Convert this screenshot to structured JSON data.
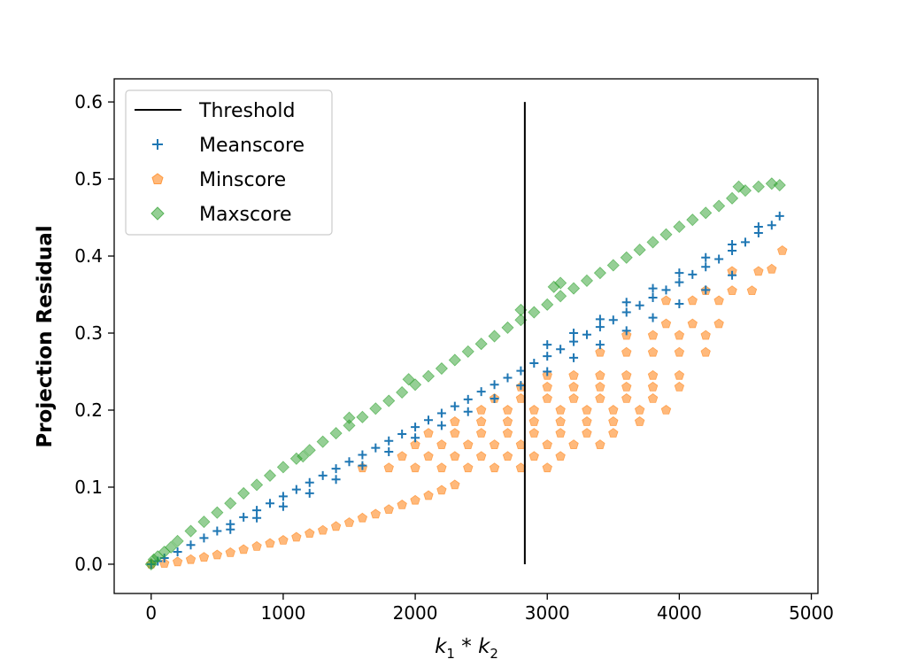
{
  "chart_data": {
    "type": "scatter",
    "xlabel": {
      "base1": "k",
      "sub1": "1",
      "op": " * ",
      "base2": "k",
      "sub2": "2"
    },
    "ylabel": "Projection Residual",
    "xlim": [
      -280,
      5050
    ],
    "ylim": [
      -0.038,
      0.63
    ],
    "x_ticks": [
      0,
      1000,
      2000,
      3000,
      4000,
      5000
    ],
    "x_tick_labels": [
      "0",
      "1000",
      "2000",
      "3000",
      "4000",
      "5000"
    ],
    "y_ticks": [
      0.0,
      0.1,
      0.2,
      0.3,
      0.4,
      0.5,
      0.6
    ],
    "y_tick_labels": [
      "0.0",
      "0.1",
      "0.2",
      "0.3",
      "0.4",
      "0.5",
      "0.6"
    ],
    "grid": false,
    "legend": {
      "position": "top-left",
      "entries": [
        {
          "label": "Threshold",
          "marker": "line",
          "color": "#000000"
        },
        {
          "label": "Meanscore",
          "marker": "plus",
          "color": "#1f77b4"
        },
        {
          "label": "Minscore",
          "marker": "pentagon",
          "color": "#ff7f0e"
        },
        {
          "label": "Maxscore",
          "marker": "diamond",
          "color": "#2ca02c"
        }
      ]
    },
    "threshold": {
      "x": 2830,
      "y_range": [
        0.0,
        0.6
      ]
    },
    "series": [
      {
        "name": "Meanscore",
        "marker": "plus",
        "color": "#1f77b4",
        "points": [
          [
            0,
            0
          ],
          [
            50,
            0.004
          ],
          [
            100,
            0.008
          ],
          [
            200,
            0.016
          ],
          [
            300,
            0.025
          ],
          [
            400,
            0.034
          ],
          [
            500,
            0.043
          ],
          [
            600,
            0.052
          ],
          [
            700,
            0.061
          ],
          [
            800,
            0.07
          ],
          [
            900,
            0.079
          ],
          [
            1000,
            0.088
          ],
          [
            1100,
            0.097
          ],
          [
            1200,
            0.106
          ],
          [
            1300,
            0.115
          ],
          [
            1400,
            0.124
          ],
          [
            1500,
            0.133
          ],
          [
            1600,
            0.142
          ],
          [
            1700,
            0.151
          ],
          [
            1800,
            0.16
          ],
          [
            1900,
            0.169
          ],
          [
            2000,
            0.178
          ],
          [
            2100,
            0.187
          ],
          [
            2200,
            0.196
          ],
          [
            2300,
            0.205
          ],
          [
            2400,
            0.214
          ],
          [
            2500,
            0.224
          ],
          [
            2600,
            0.233
          ],
          [
            2700,
            0.242
          ],
          [
            2800,
            0.251
          ],
          [
            2900,
            0.261
          ],
          [
            3000,
            0.27
          ],
          [
            3100,
            0.279
          ],
          [
            3200,
            0.289
          ],
          [
            3300,
            0.298
          ],
          [
            3400,
            0.308
          ],
          [
            3500,
            0.317
          ],
          [
            3600,
            0.327
          ],
          [
            3700,
            0.336
          ],
          [
            3800,
            0.346
          ],
          [
            3900,
            0.356
          ],
          [
            4000,
            0.366
          ],
          [
            4100,
            0.376
          ],
          [
            4200,
            0.386
          ],
          [
            4300,
            0.396
          ],
          [
            4400,
            0.407
          ],
          [
            4500,
            0.418
          ],
          [
            4600,
            0.43
          ],
          [
            4700,
            0.44
          ],
          [
            4760,
            0.452
          ],
          [
            600,
            0.045
          ],
          [
            800,
            0.06
          ],
          [
            1000,
            0.075
          ],
          [
            1200,
            0.092
          ],
          [
            1400,
            0.11
          ],
          [
            1600,
            0.128
          ],
          [
            1800,
            0.146
          ],
          [
            2000,
            0.164
          ],
          [
            2200,
            0.18
          ],
          [
            2400,
            0.198
          ],
          [
            2600,
            0.215
          ],
          [
            2800,
            0.232
          ],
          [
            3000,
            0.25
          ],
          [
            3200,
            0.268
          ],
          [
            3400,
            0.285
          ],
          [
            3600,
            0.303
          ],
          [
            3800,
            0.32
          ],
          [
            4000,
            0.338
          ],
          [
            4200,
            0.356
          ],
          [
            4400,
            0.375
          ],
          [
            3000,
            0.285
          ],
          [
            3200,
            0.3
          ],
          [
            3400,
            0.318
          ],
          [
            3600,
            0.34
          ],
          [
            3800,
            0.358
          ],
          [
            4000,
            0.378
          ],
          [
            4200,
            0.398
          ],
          [
            4400,
            0.415
          ],
          [
            4600,
            0.438
          ]
        ]
      },
      {
        "name": "Minscore",
        "marker": "pentagon",
        "color": "#ff7f0e",
        "points": [
          [
            0,
            0
          ],
          [
            100,
            0.001
          ],
          [
            200,
            0.003
          ],
          [
            300,
            0.006
          ],
          [
            400,
            0.009
          ],
          [
            500,
            0.012
          ],
          [
            600,
            0.015
          ],
          [
            700,
            0.019
          ],
          [
            800,
            0.023
          ],
          [
            900,
            0.027
          ],
          [
            1000,
            0.031
          ],
          [
            1100,
            0.035
          ],
          [
            1200,
            0.04
          ],
          [
            1300,
            0.044
          ],
          [
            1400,
            0.049
          ],
          [
            1500,
            0.054
          ],
          [
            1600,
            0.06
          ],
          [
            1700,
            0.065
          ],
          [
            1800,
            0.071
          ],
          [
            1900,
            0.077
          ],
          [
            2000,
            0.083
          ],
          [
            2100,
            0.089
          ],
          [
            2200,
            0.096
          ],
          [
            2300,
            0.103
          ],
          [
            1600,
            0.125
          ],
          [
            1800,
            0.125
          ],
          [
            2000,
            0.125
          ],
          [
            2200,
            0.125
          ],
          [
            2400,
            0.125
          ],
          [
            2600,
            0.125
          ],
          [
            2800,
            0.125
          ],
          [
            3000,
            0.125
          ],
          [
            1900,
            0.14
          ],
          [
            2100,
            0.14
          ],
          [
            2300,
            0.14
          ],
          [
            2500,
            0.14
          ],
          [
            2700,
            0.14
          ],
          [
            2900,
            0.14
          ],
          [
            3100,
            0.14
          ],
          [
            2000,
            0.155
          ],
          [
            2200,
            0.155
          ],
          [
            2400,
            0.155
          ],
          [
            2600,
            0.155
          ],
          [
            2800,
            0.155
          ],
          [
            3000,
            0.155
          ],
          [
            3200,
            0.155
          ],
          [
            3400,
            0.155
          ],
          [
            2100,
            0.17
          ],
          [
            2300,
            0.17
          ],
          [
            2500,
            0.17
          ],
          [
            2700,
            0.17
          ],
          [
            2900,
            0.17
          ],
          [
            3100,
            0.17
          ],
          [
            3300,
            0.17
          ],
          [
            3500,
            0.17
          ],
          [
            2300,
            0.185
          ],
          [
            2500,
            0.185
          ],
          [
            2700,
            0.185
          ],
          [
            2900,
            0.185
          ],
          [
            3100,
            0.185
          ],
          [
            3300,
            0.185
          ],
          [
            3500,
            0.185
          ],
          [
            3700,
            0.185
          ],
          [
            2500,
            0.2
          ],
          [
            2700,
            0.2
          ],
          [
            2900,
            0.2
          ],
          [
            3100,
            0.2
          ],
          [
            3300,
            0.2
          ],
          [
            3500,
            0.2
          ],
          [
            3700,
            0.2
          ],
          [
            3900,
            0.2
          ],
          [
            2600,
            0.215
          ],
          [
            2800,
            0.215
          ],
          [
            3000,
            0.215
          ],
          [
            3200,
            0.215
          ],
          [
            3400,
            0.215
          ],
          [
            3600,
            0.215
          ],
          [
            3800,
            0.215
          ],
          [
            2800,
            0.23
          ],
          [
            3000,
            0.23
          ],
          [
            3200,
            0.23
          ],
          [
            3400,
            0.23
          ],
          [
            3600,
            0.23
          ],
          [
            3800,
            0.23
          ],
          [
            4000,
            0.23
          ],
          [
            3000,
            0.245
          ],
          [
            3200,
            0.245
          ],
          [
            3400,
            0.245
          ],
          [
            3600,
            0.245
          ],
          [
            3800,
            0.245
          ],
          [
            4000,
            0.245
          ],
          [
            3400,
            0.275
          ],
          [
            3600,
            0.275
          ],
          [
            3800,
            0.275
          ],
          [
            4000,
            0.275
          ],
          [
            4200,
            0.275
          ],
          [
            3600,
            0.297
          ],
          [
            3800,
            0.297
          ],
          [
            4000,
            0.297
          ],
          [
            4200,
            0.297
          ],
          [
            3900,
            0.312
          ],
          [
            4100,
            0.312
          ],
          [
            4300,
            0.312
          ],
          [
            3900,
            0.342
          ],
          [
            4100,
            0.342
          ],
          [
            4300,
            0.342
          ],
          [
            4200,
            0.355
          ],
          [
            4400,
            0.355
          ],
          [
            4550,
            0.355
          ],
          [
            4400,
            0.38
          ],
          [
            4600,
            0.38
          ],
          [
            4700,
            0.383
          ],
          [
            4780,
            0.407
          ]
        ]
      },
      {
        "name": "Maxscore",
        "marker": "diamond",
        "color": "#2ca02c",
        "points": [
          [
            0,
            0
          ],
          [
            20,
            0.006
          ],
          [
            50,
            0.01
          ],
          [
            100,
            0.016
          ],
          [
            150,
            0.022
          ],
          [
            200,
            0.03
          ],
          [
            300,
            0.043
          ],
          [
            400,
            0.055
          ],
          [
            500,
            0.067
          ],
          [
            600,
            0.079
          ],
          [
            700,
            0.092
          ],
          [
            800,
            0.103
          ],
          [
            900,
            0.115
          ],
          [
            1000,
            0.126
          ],
          [
            1100,
            0.137
          ],
          [
            1200,
            0.148
          ],
          [
            1300,
            0.159
          ],
          [
            1400,
            0.17
          ],
          [
            1500,
            0.18
          ],
          [
            1600,
            0.191
          ],
          [
            1700,
            0.202
          ],
          [
            1800,
            0.212
          ],
          [
            1900,
            0.223
          ],
          [
            2000,
            0.233
          ],
          [
            2100,
            0.244
          ],
          [
            2200,
            0.254
          ],
          [
            2300,
            0.265
          ],
          [
            2400,
            0.276
          ],
          [
            2500,
            0.286
          ],
          [
            2600,
            0.296
          ],
          [
            2700,
            0.307
          ],
          [
            2800,
            0.317
          ],
          [
            2900,
            0.327
          ],
          [
            3000,
            0.337
          ],
          [
            3100,
            0.348
          ],
          [
            3200,
            0.358
          ],
          [
            3300,
            0.368
          ],
          [
            3400,
            0.378
          ],
          [
            3500,
            0.388
          ],
          [
            3600,
            0.398
          ],
          [
            3700,
            0.408
          ],
          [
            3800,
            0.418
          ],
          [
            3900,
            0.428
          ],
          [
            4000,
            0.438
          ],
          [
            4100,
            0.447
          ],
          [
            4200,
            0.456
          ],
          [
            4300,
            0.465
          ],
          [
            4400,
            0.475
          ],
          [
            4500,
            0.485
          ],
          [
            4600,
            0.49
          ],
          [
            4700,
            0.494
          ],
          [
            4760,
            0.492
          ],
          [
            1150,
            0.14
          ],
          [
            1500,
            0.19
          ],
          [
            1950,
            0.24
          ],
          [
            2800,
            0.33
          ],
          [
            3100,
            0.365
          ],
          [
            3050,
            0.36
          ],
          [
            4450,
            0.49
          ]
        ]
      }
    ]
  }
}
